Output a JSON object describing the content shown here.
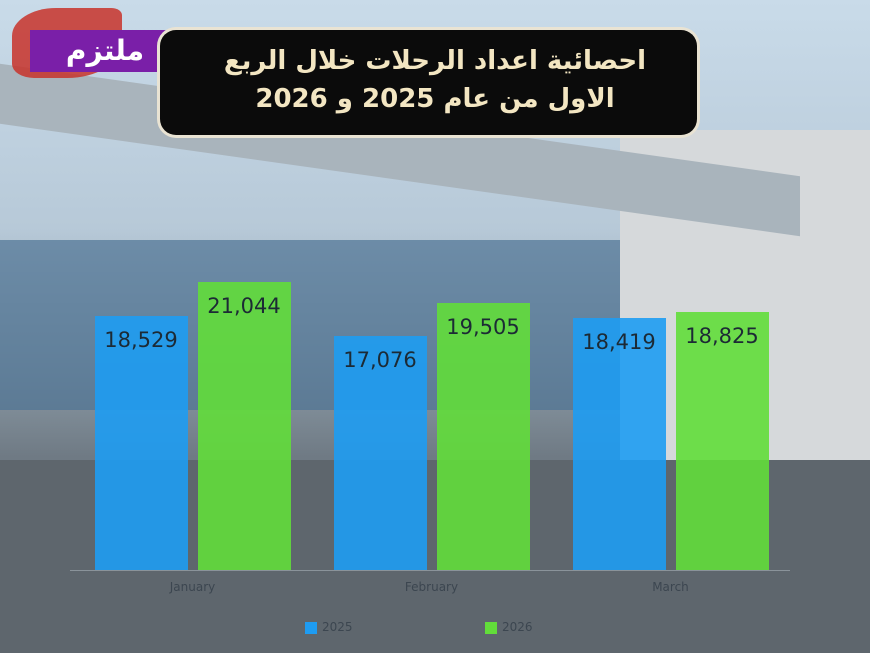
{
  "brand": "ملتزم",
  "chart_data": {
    "type": "bar",
    "title": "احصائية اعداد الرحلات خلال الربع الاول من عام 2025 و 2026",
    "categories": [
      "January",
      "February",
      "March"
    ],
    "series": [
      {
        "name": "2025",
        "color": "#1e9cf2",
        "values": [
          18529,
          17076,
          18419
        ],
        "value_labels": [
          "18,529",
          "17,076",
          "18,419"
        ]
      },
      {
        "name": "2026",
        "color": "#62dd3a",
        "values": [
          21044,
          19505,
          18825
        ],
        "value_labels": [
          "21,044",
          "19,505",
          "18,825"
        ]
      }
    ]
  }
}
